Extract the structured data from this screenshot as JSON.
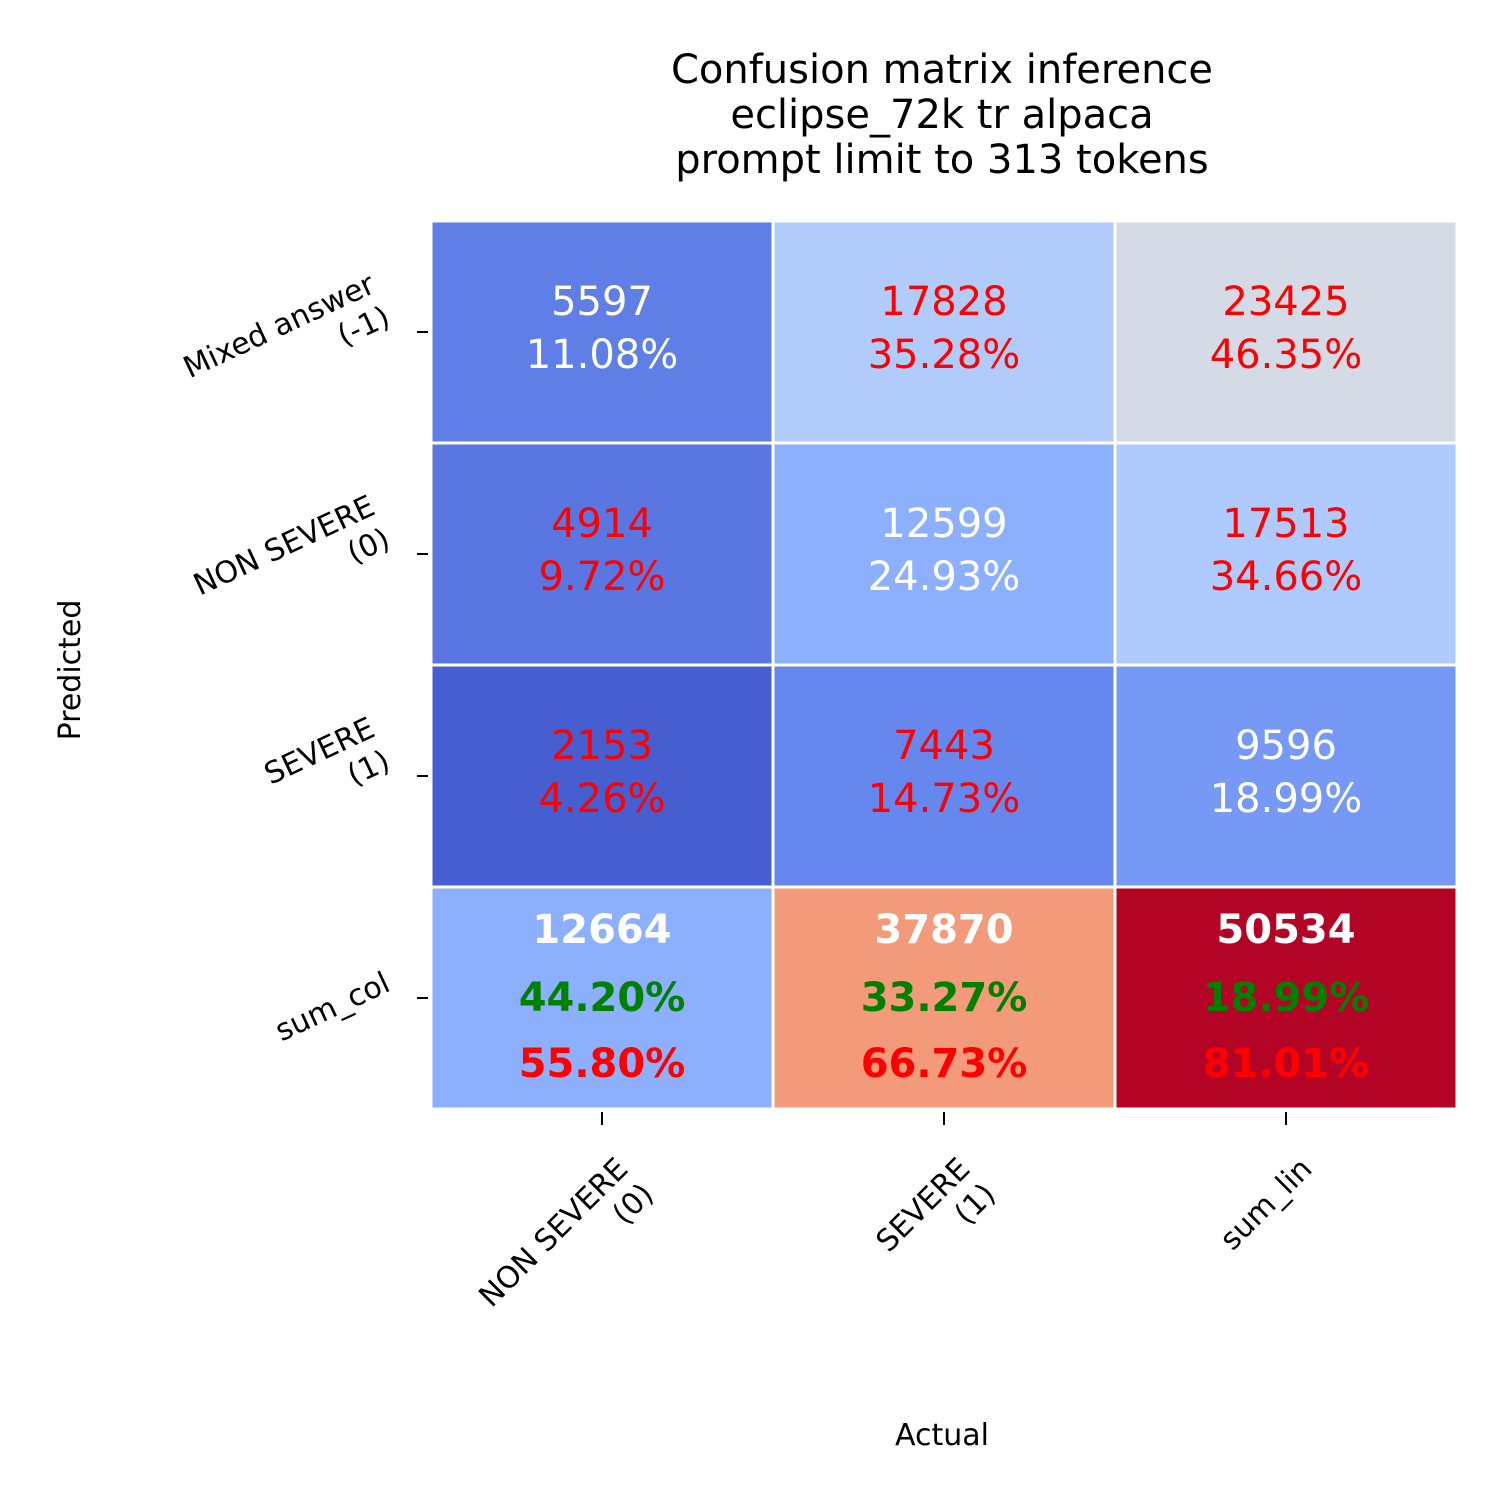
{
  "chart_data": {
    "type": "heatmap",
    "title": [
      "Confusion matrix inference",
      "eclipse_72k tr alpaca",
      "prompt limit to 313 tokens"
    ],
    "xlabel": "Actual",
    "ylabel": "Predicted",
    "x_categories": [
      [
        "NON SEVERE",
        "(0)"
      ],
      [
        "SEVERE",
        "(1)"
      ],
      [
        "sum_lin"
      ]
    ],
    "y_categories": [
      [
        "Mixed answer",
        "(-1)"
      ],
      [
        "NON SEVERE",
        "(0)"
      ],
      [
        "SEVERE",
        "(1)"
      ],
      [
        "sum_col"
      ]
    ],
    "rows": [
      [
        {
          "value": "5597",
          "pct": "11.08%",
          "fill": "#5f7ee6",
          "text_color": "#ffffff"
        },
        {
          "value": "17828",
          "pct": "35.28%",
          "fill": "#b1cbfb",
          "text_color": "#ff0000"
        },
        {
          "value": "23425",
          "pct": "46.35%",
          "fill": "#d4dbe6",
          "text_color": "#ff0000"
        }
      ],
      [
        {
          "value": "4914",
          "pct": "9.72%",
          "fill": "#5a76e1",
          "text_color": "#ff0000"
        },
        {
          "value": "12599",
          "pct": "24.93%",
          "fill": "#8caffe",
          "text_color": "#ffffff"
        },
        {
          "value": "17513",
          "pct": "34.66%",
          "fill": "#afcafc",
          "text_color": "#ff0000"
        }
      ],
      [
        {
          "value": "2153",
          "pct": "4.26%",
          "fill": "#465ecf",
          "text_color": "#ff0000"
        },
        {
          "value": "7443",
          "pct": "14.73%",
          "fill": "#6687ed",
          "text_color": "#ff0000"
        },
        {
          "value": "9596",
          "pct": "18.99%",
          "fill": "#7699f6",
          "text_color": "#ffffff"
        }
      ]
    ],
    "sum_row": [
      {
        "value": "12664",
        "good": "44.20%",
        "bad": "55.80%",
        "fill": "#8caffe"
      },
      {
        "value": "37870",
        "good": "33.27%",
        "bad": "66.73%",
        "fill": "#f39a7b"
      },
      {
        "value": "50534",
        "good": "18.99%",
        "bad": "81.01%",
        "fill": "#b40426"
      }
    ],
    "colors": {
      "good": "#008000",
      "bad": "#ff0000",
      "total": "#ffffff",
      "grid": "#ffffff",
      "text": "#000000"
    }
  }
}
